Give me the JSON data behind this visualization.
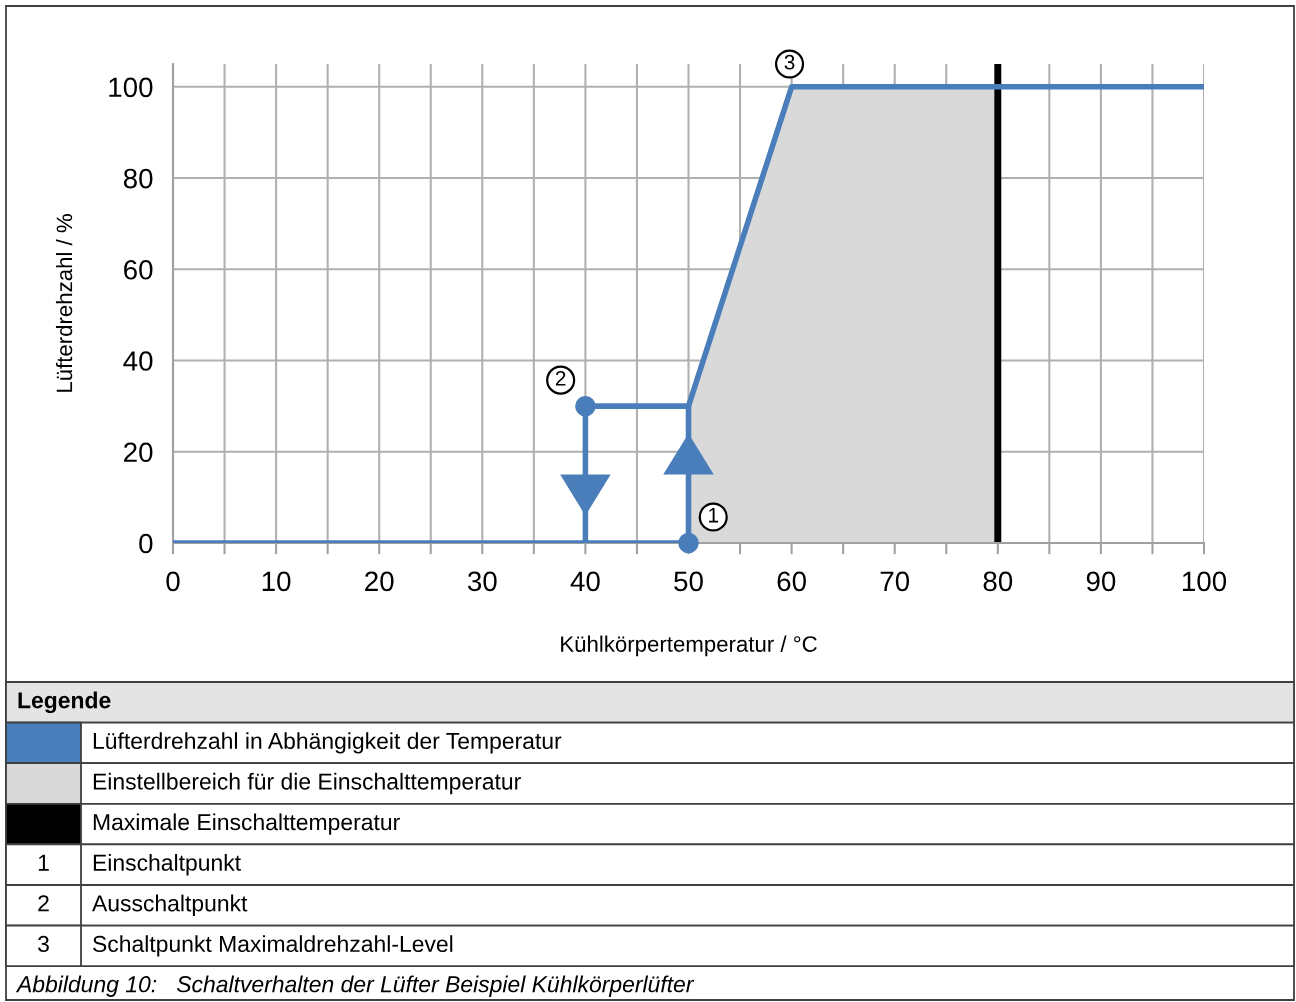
{
  "chart_data": {
    "type": "line",
    "xlabel": "Kühlkörpertemperatur / °C",
    "ylabel": "Lüfterdrehzahl / %",
    "legend_title": "Legende",
    "legend": "bottom",
    "grid": true,
    "line_style": "solid",
    "xlim": [
      0,
      100
    ],
    "ylim": [
      0,
      105
    ],
    "xticks": [
      0,
      {
        "value": 5,
        "label": null
      },
      10,
      {
        "value": 15,
        "label": null
      },
      20,
      {
        "value": 25,
        "label": null
      },
      30,
      {
        "value": 35,
        "label": null
      },
      40,
      {
        "value": 45,
        "label": null
      },
      50,
      {
        "value": 55,
        "label": null
      },
      60,
      {
        "value": 65,
        "label": null
      },
      70,
      {
        "value": 75,
        "label": null
      },
      80,
      {
        "value": 85,
        "label": null
      },
      90,
      {
        "value": 95,
        "label": null
      },
      100
    ],
    "yticks": [
      0,
      20,
      40,
      60,
      80,
      100
    ],
    "series": [
      {
        "name": "Lüfterdrehzahl in Abhängigkeit der Temperatur",
        "color": "#4a7ebb",
        "x": [
          0,
          50,
          50,
          60,
          100
        ],
        "values": [
          0,
          0,
          30,
          100,
          100
        ]
      },
      {
        "color": "#4a7ebb",
        "x": [
          50,
          40,
          40
        ],
        "values": [
          30,
          30,
          0
        ]
      },
      {
        "type": "scatter",
        "color": "#4a7ebb",
        "x": [
          50,
          40
        ],
        "values": [
          0,
          30
        ]
      }
    ],
    "bands": [
      {
        "axis": "x",
        "from": 50,
        "to": 80,
        "label": "Einstellbereich für die Einschalttemperatur",
        "color": "#d9d9d9"
      }
    ],
    "ref_lines": [
      {
        "axis": "x",
        "value": 80,
        "label": "Maximale Einschalttemperatur",
        "color": "#000000"
      }
    ],
    "annotations": [
      {
        "text": "1",
        "x": 52.4,
        "y": 5.7
      },
      {
        "text": "2",
        "x": 37.6,
        "y": 35.7
      },
      {
        "text": "3",
        "x": 59.8,
        "y": 105
      },
      "1",
      "Einschaltpunkt",
      "2",
      "Ausschaltpunkt",
      "3",
      "Schaltpunkt Maximaldrehzahl-Level",
      "Abbildung 10:   Schaltverhalten der Lüfter Beispiel Kühlkörperlüfter"
    ]
  }
}
